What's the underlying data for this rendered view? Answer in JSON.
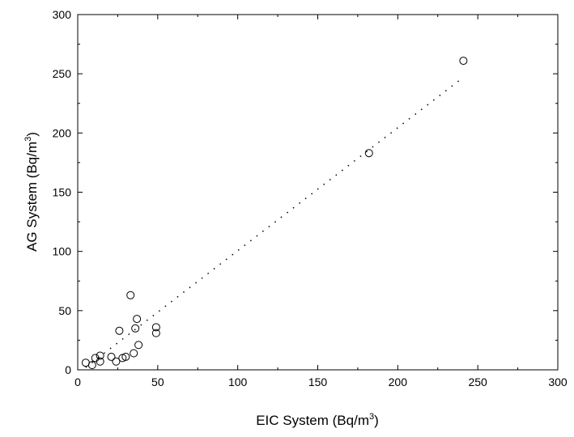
{
  "chart_data": {
    "type": "scatter",
    "x_label": {
      "main": "EIC System (Bq/m",
      "sup": "3",
      "end": ")"
    },
    "y_label": {
      "main": "AG System (Bq/m",
      "sup": "3",
      "end": ")"
    },
    "x": [
      5,
      9,
      11,
      14,
      14,
      21,
      24,
      26,
      28,
      30,
      33,
      35,
      36,
      37,
      38,
      49,
      49,
      182,
      241
    ],
    "values": [
      6,
      4,
      10,
      12,
      7,
      11,
      7,
      33,
      10,
      11,
      63,
      14,
      35,
      43,
      21,
      36,
      31,
      183,
      261
    ],
    "color": "#000000",
    "fit": {
      "x": [
        5,
        240
      ],
      "y": [
        2,
        246
      ]
    },
    "xlim": [
      0,
      300
    ],
    "ylim": [
      0,
      300
    ],
    "xticks": [
      0,
      50,
      100,
      150,
      200,
      250,
      300
    ],
    "yticks": [
      0,
      50,
      100,
      150,
      200,
      250,
      300
    ],
    "xminor": [
      25,
      75,
      125,
      175,
      225,
      275
    ],
    "yminor": [
      25,
      75,
      125,
      175,
      225,
      275
    ]
  }
}
